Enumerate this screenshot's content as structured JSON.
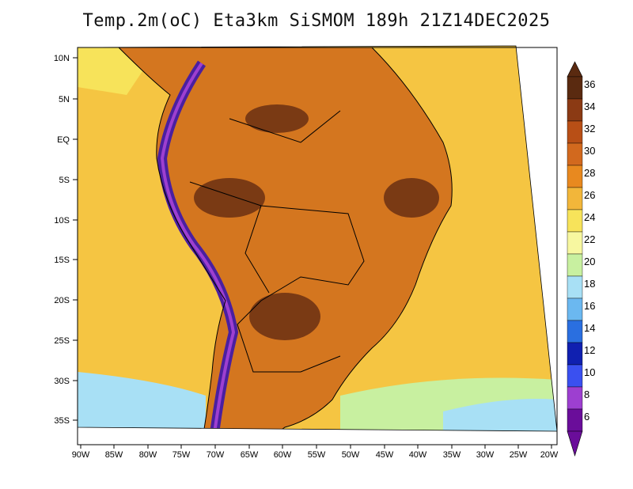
{
  "title": "Temp.2m(oC) Eta3km SiSMOM 189h 21Z14DEC2025",
  "map": {
    "lat_labels": [
      "10N",
      "5N",
      "EQ",
      "5S",
      "10S",
      "15S",
      "20S",
      "25S",
      "30S",
      "35S"
    ],
    "lon_labels": [
      "90W",
      "85W",
      "80W",
      "75W",
      "70W",
      "65W",
      "60W",
      "55W",
      "50W",
      "45W",
      "40W",
      "35W",
      "30W",
      "25W",
      "20W"
    ],
    "background_color": "#f5c542",
    "land_color": "#d4761f",
    "hot_core_color": "#7a3a14",
    "andes_color": "#4a1fa0",
    "border_color": "#000000"
  },
  "colorbar": {
    "labels": [
      "36",
      "34",
      "32",
      "30",
      "28",
      "26",
      "24",
      "22",
      "20",
      "18",
      "16",
      "14",
      "12",
      "10",
      "8",
      "6"
    ],
    "colors": [
      "#5a2a10",
      "#8b3a14",
      "#b84f16",
      "#d2691e",
      "#e8891f",
      "#f2b63a",
      "#f7e35a",
      "#f7f7a0",
      "#c8f0a0",
      "#a8e0f5",
      "#6bb8f0",
      "#2a6fe0",
      "#1020b0",
      "#3a50f0",
      "#9d3fd0",
      "#6a0d9a"
    ],
    "top_arrow_color": "#5a2a10",
    "bottom_arrow_color": "#6a0d9a"
  }
}
